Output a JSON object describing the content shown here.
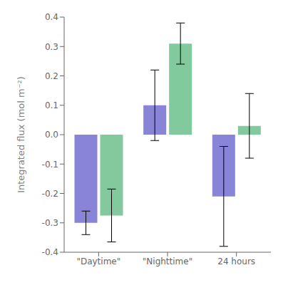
{
  "chart_data": {
    "type": "bar",
    "ylabel": "Integrated flux (mol m⁻²)",
    "categories": [
      "\"Daytime\"",
      "\"Nighttime\"",
      "24 hours"
    ],
    "series": [
      {
        "values": [
          -0.3,
          0.1,
          -0.21
        ],
        "errors": [
          0.04,
          0.12,
          0.17
        ]
      },
      {
        "values": [
          -0.275,
          0.31,
          0.03
        ],
        "errors": [
          0.09,
          0.07,
          0.11
        ]
      }
    ],
    "ylim": [
      -0.4,
      0.4
    ],
    "yticks": [
      -0.4,
      -0.3,
      -0.2,
      -0.1,
      {
        "value": 0,
        "label": "0.0"
      },
      0.1,
      0.2,
      0.3,
      0.4
    ]
  }
}
